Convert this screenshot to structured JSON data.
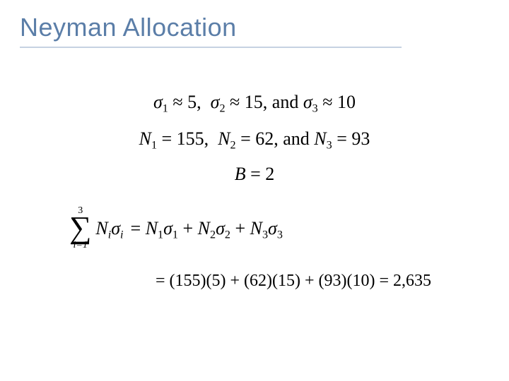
{
  "slide": {
    "title": "Neyman Allocation",
    "title_color": "#5b7ea8",
    "rule_color": "#c6d2e2",
    "background_color": "#ffffff"
  },
  "math": {
    "sigmas_line_html": "<span class='it'>σ</span><sub>1</sub> ≈ 5,&nbsp;&nbsp;<span class='it'>σ</span><sub>2</sub> ≈ 15,&nbsp;and&nbsp;<span class='it'>σ</span><sub>3</sub> ≈ 10",
    "sigma_values": [
      5,
      15,
      10
    ],
    "Ns_line_html": "<span class='it'>N</span><sub>1</sub> = 155,&nbsp;&nbsp;<span class='it'>N</span><sub>2</sub> = 62,&nbsp;and&nbsp;<span class='it'>N</span><sub>3</sub> = 93",
    "N_values": [
      155,
      62,
      93
    ],
    "B_line_html": "<span class='it'>B</span> = 2",
    "B_value": 2,
    "sum_upper": "3",
    "sum_lower_html": "<span class='it'>i</span>=1",
    "sum_term_html": "<span class='it'>N</span><sub><span class='it'>i</span></sub><span class='it'>σ</span><sub><span class='it'>i</span></sub>",
    "sum_rhs_html": "= <span class='it'>N</span><sub>1</sub><span class='it'>σ</span><sub>1</sub> + <span class='it'>N</span><sub>2</sub><span class='it'>σ</span><sub>2</sub> + <span class='it'>N</span><sub>3</sub><span class='it'>σ</span><sub>3</sub>",
    "calc_line_html": "= (155)(5) + (62)(15) + (93)(10) = 2,635",
    "sum_result": 2635
  }
}
